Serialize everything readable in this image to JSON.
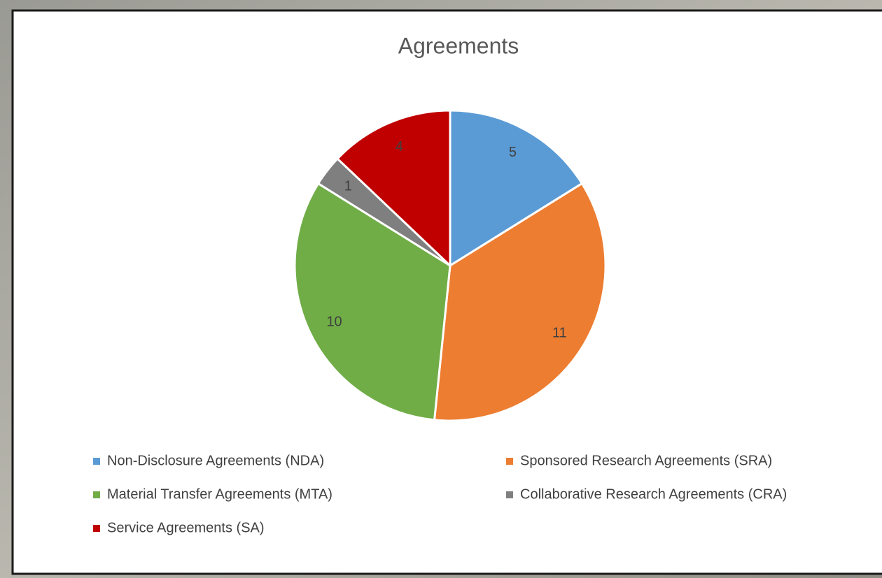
{
  "chart_data": {
    "type": "pie",
    "title": "Agreements",
    "categories": [
      "Non-Disclosure Agreements (NDA)",
      "Sponsored Research Agreements (SRA)",
      "Material Transfer Agreements (MTA)",
      "Collaborative Research Agreements (CRA)",
      "Service Agreements (SA)"
    ],
    "values": [
      5,
      11,
      10,
      1,
      4
    ],
    "colors": [
      "#5b9bd5",
      "#ed7d31",
      "#70ad47",
      "#7f7f7f",
      "#c00000"
    ],
    "legend": "bottom"
  }
}
